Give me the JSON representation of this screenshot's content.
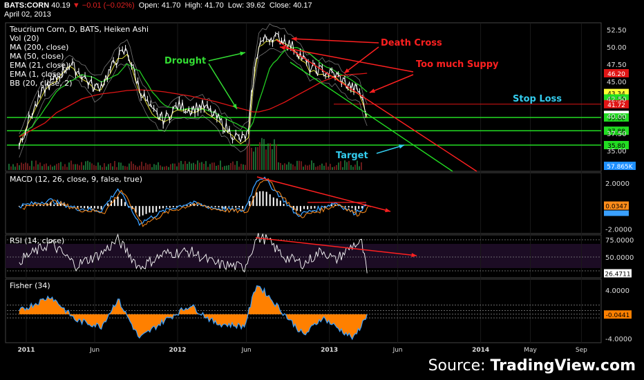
{
  "header": {
    "symbol": "BATS:CORN",
    "last": "40.19",
    "change": "▼ −0.01 (−0.02%)",
    "open_label": "Open:",
    "open": "41.70",
    "high_label": "High:",
    "high": "41.70",
    "low_label": "Low:",
    "low": "39.62",
    "close_label": "Close:",
    "close": "40.17",
    "date": "April 02, 2013"
  },
  "legend": [
    "Teucrium Corn, D, BATS, Heiken Ashi",
    "Vol (20)",
    "MA (200, close)",
    "MA (50, close)",
    "EMA (21, close)",
    "EMA (1, close)",
    "BB (20, close, 2)"
  ],
  "annotations": {
    "drought": "Drought",
    "death_cross": "Death Cross",
    "supply": "Too much Suppy",
    "stop_loss": "Stop Loss",
    "target": "Target"
  },
  "source": {
    "prefix": "Source: ",
    "brand": "TradingView.com"
  },
  "colors": {
    "price": "#ffffff",
    "ma200": "#e01515",
    "ma50": "#22cc22",
    "ema21": "#dddd33",
    "bb": "#aaaaaa",
    "level": "#22dd22",
    "annot_red": "#ff2020",
    "annot_green": "#33dd33",
    "annot_cyan": "#33ccee",
    "macd": "#3aa0ff",
    "signal": "#ff8c1a",
    "fisher": "#ff8000",
    "rsi": "#ffffff"
  },
  "chart_data": [
    {
      "type": "line",
      "title": "Teucrium Corn, D, BATS, Heiken Ashi",
      "x": [
        "2010-12-15",
        "2011-01-15",
        "2011-02-15",
        "2011-03-15",
        "2011-04-15",
        "2011-05-15",
        "2011-06-15",
        "2011-07-01",
        "2011-08-10",
        "2011-09-01",
        "2011-10-01",
        "2011-11-01",
        "2011-12-01",
        "2012-01-01",
        "2012-02-01",
        "2012-03-01",
        "2012-04-01",
        "2012-05-01",
        "2012-06-01",
        "2012-06-20",
        "2012-07-01",
        "2012-07-15",
        "2012-08-10",
        "2012-09-15",
        "2012-10-15",
        "2012-11-15",
        "2012-12-15",
        "2013-01-15",
        "2013-02-15",
        "2013-03-15",
        "2013-04-02"
      ],
      "series": [
        {
          "name": "Heiken Ashi close",
          "values": [
            36.0,
            40.5,
            44.0,
            45.5,
            47.5,
            46.0,
            44.0,
            44.5,
            48.5,
            49.5,
            44.0,
            40.5,
            39.5,
            41.5,
            41.0,
            41.5,
            40.0,
            38.0,
            36.5,
            37.5,
            45.0,
            50.5,
            51.5,
            51.0,
            49.5,
            47.0,
            46.5,
            46.0,
            44.5,
            43.5,
            40.19
          ]
        },
        {
          "name": "MA (200, close)",
          "values": [
            37.0,
            38.0,
            39.0,
            40.5,
            41.5,
            42.5,
            43.0,
            43.2,
            43.5,
            43.7,
            43.8,
            43.7,
            43.5,
            43.2,
            42.9,
            42.5,
            42.1,
            41.6,
            41.1,
            40.8,
            40.6,
            40.6,
            41.0,
            42.0,
            43.0,
            44.0,
            45.0,
            45.7,
            46.0,
            46.1,
            46.2
          ]
        },
        {
          "name": "MA (50, close)",
          "values": [
            37.0,
            38.5,
            41.0,
            43.5,
            45.0,
            46.0,
            45.5,
            45.0,
            46.0,
            47.5,
            46.5,
            43.5,
            41.5,
            41.0,
            41.0,
            41.0,
            40.5,
            39.5,
            38.5,
            38.0,
            39.0,
            42.0,
            47.0,
            49.5,
            50.0,
            49.0,
            47.5,
            46.5,
            45.5,
            44.5,
            43.5
          ]
        }
      ],
      "ylim": [
        32.0,
        53.5
      ],
      "y_ticks": [
        "52.50",
        "50.00",
        "47.50",
        "45.00",
        "42.50",
        "40.00",
        "37.50",
        "35.00"
      ],
      "x_ticks": [
        "2011",
        "Jun",
        "2012",
        "Jun",
        "2013",
        "Jun",
        "2014",
        "May",
        "Sep"
      ],
      "price_tags": [
        "46.20",
        "43.34",
        "42.55",
        "41.72",
        "40.17",
        "39.80",
        "37.88",
        "35.80"
      ],
      "levels": [
        39.8,
        37.88,
        35.8
      ],
      "stop_loss": 41.72
    },
    {
      "type": "bar",
      "title": "Vol (20)",
      "tag": "57.865K"
    },
    {
      "type": "line",
      "title": "MACD (12, 26, close, 9, false, true)",
      "y_ticks": [
        "2.0000",
        "0.0347",
        "-2.0000"
      ],
      "ylim": [
        -2.4,
        2.9
      ],
      "x": [
        "2010-12-15",
        "2011-03-01",
        "2011-05-01",
        "2011-07-01",
        "2011-08-10",
        "2011-10-01",
        "2011-12-01",
        "2012-02-01",
        "2012-04-01",
        "2012-06-10",
        "2012-07-10",
        "2012-07-25",
        "2012-09-01",
        "2012-10-15",
        "2012-12-01",
        "2013-01-15",
        "2013-03-01",
        "2013-04-02"
      ],
      "series": [
        {
          "name": "MACD",
          "values": [
            0.0,
            0.5,
            -0.2,
            -0.4,
            1.5,
            -1.5,
            -0.4,
            0.3,
            -0.2,
            -0.4,
            2.3,
            2.5,
            1.0,
            -0.8,
            -0.3,
            0.3,
            -0.6,
            0.0347
          ]
        }
      ]
    },
    {
      "type": "line",
      "title": "RSI (14, close)",
      "y_ticks": [
        "75.0000",
        "50.0000",
        "26.4711"
      ],
      "ylim": [
        20,
        82
      ],
      "x": [
        "2010-12-15",
        "2011-03-01",
        "2011-05-01",
        "2011-07-01",
        "2011-08-10",
        "2011-10-01",
        "2011-12-01",
        "2012-02-01",
        "2012-04-01",
        "2012-06-10",
        "2012-07-10",
        "2012-08-01",
        "2012-09-15",
        "2012-11-01",
        "2012-12-15",
        "2013-01-15",
        "2013-03-01",
        "2013-03-20",
        "2013-04-02"
      ],
      "series": [
        {
          "name": "RSI",
          "values": [
            45,
            70,
            38,
            55,
            75,
            35,
            55,
            58,
            40,
            35,
            78,
            76,
            50,
            40,
            60,
            45,
            68,
            70,
            26.4711
          ]
        }
      ]
    },
    {
      "type": "area",
      "title": "Fisher (34)",
      "y_ticks": [
        "4.0000",
        "-0.0441",
        "-4.0000"
      ],
      "ylim": [
        -4.7,
        5.8
      ],
      "x": [
        "2010-12-15",
        "2011-03-01",
        "2011-05-01",
        "2011-07-01",
        "2011-08-10",
        "2011-10-01",
        "2011-12-01",
        "2012-02-01",
        "2012-04-01",
        "2012-06-10",
        "2012-07-10",
        "2012-08-01",
        "2012-09-15",
        "2012-11-01",
        "2012-12-15",
        "2013-01-15",
        "2013-03-01",
        "2013-04-02"
      ],
      "series": [
        {
          "name": "Fisher",
          "values": [
            0.5,
            3.0,
            -1.0,
            -2.0,
            2.5,
            -4.0,
            -1.0,
            1.5,
            -1.5,
            -2.0,
            5.0,
            3.5,
            0.0,
            -3.5,
            -0.5,
            -2.0,
            -4.0,
            -0.0441
          ]
        }
      ]
    }
  ]
}
